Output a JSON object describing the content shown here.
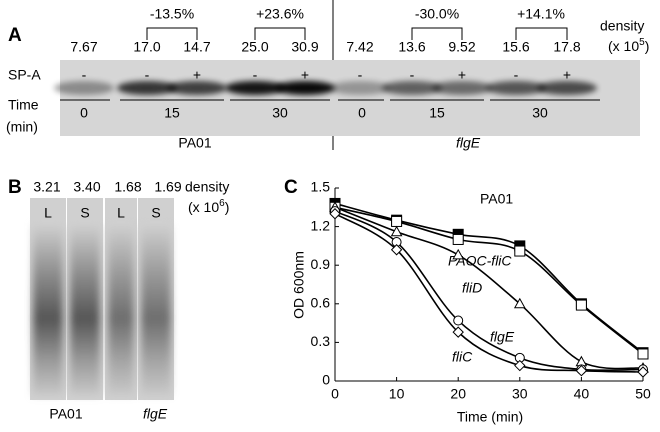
{
  "panel_a": {
    "letter": "A",
    "density_label": "density",
    "density_unit": {
      "prefix": "(x 10",
      "exponent": "5",
      "suffix": ")"
    },
    "densities": [
      "7.67",
      "17.0",
      "14.7",
      "25.0",
      "30.9",
      "7.42",
      "13.6",
      "9.52",
      "15.6",
      "17.8"
    ],
    "changes": [
      "-13.5%",
      "+23.6%",
      "-30.0%",
      "+14.1%"
    ],
    "spa_label": "SP-A",
    "spa": [
      "-",
      "-",
      "+",
      "-",
      "+",
      "-",
      "-",
      "+",
      "-",
      "+"
    ],
    "time_label": "Time",
    "time_unit": "(min)",
    "times": [
      "0",
      "15",
      "30",
      "0",
      "15",
      "30"
    ],
    "strains": [
      "PA01",
      "flgE"
    ]
  },
  "panel_b": {
    "letter": "B",
    "densities": [
      "3.21",
      "3.40",
      "1.68",
      "1.69"
    ],
    "density_label": "density",
    "density_unit": {
      "prefix": "(x 10",
      "exponent": "6",
      "suffix": ")"
    },
    "lanes": [
      "L",
      "S",
      "L",
      "S"
    ],
    "strains": [
      "PA01",
      "flgE"
    ]
  },
  "chart_data": {
    "type": "line",
    "letter": "C",
    "x_label": "Time (min)",
    "y_label": "OD 600nm",
    "x": [
      0,
      10,
      20,
      30,
      40,
      50
    ],
    "xlim": [
      0,
      50
    ],
    "ylim": [
      0,
      1.5
    ],
    "xticks": [
      0,
      10,
      20,
      30,
      40,
      50
    ],
    "yticks": [
      0,
      0.3,
      0.6,
      0.9,
      1.2,
      1.5
    ],
    "grid": false,
    "series": [
      {
        "name": "PA01",
        "color": "#000000",
        "marker": "filled-square",
        "values": [
          1.38,
          1.25,
          1.14,
          1.05,
          0.6,
          0.22
        ]
      },
      {
        "name": "PAOC-fliC",
        "color": "#000000",
        "marker": "open-square",
        "values": [
          1.35,
          1.24,
          1.1,
          1.01,
          0.59,
          0.21
        ]
      },
      {
        "name": "fliD",
        "color": "#000000",
        "marker": "open-triangle",
        "values": [
          1.35,
          1.16,
          0.98,
          0.6,
          0.15,
          0.1
        ]
      },
      {
        "name": "flgE",
        "color": "#000000",
        "marker": "open-circle",
        "values": [
          1.32,
          1.08,
          0.47,
          0.18,
          0.09,
          0.09
        ]
      },
      {
        "name": "fliC",
        "color": "#000000",
        "marker": "open-diamond",
        "values": [
          1.3,
          1.02,
          0.38,
          0.12,
          0.08,
          0.07
        ]
      }
    ]
  }
}
